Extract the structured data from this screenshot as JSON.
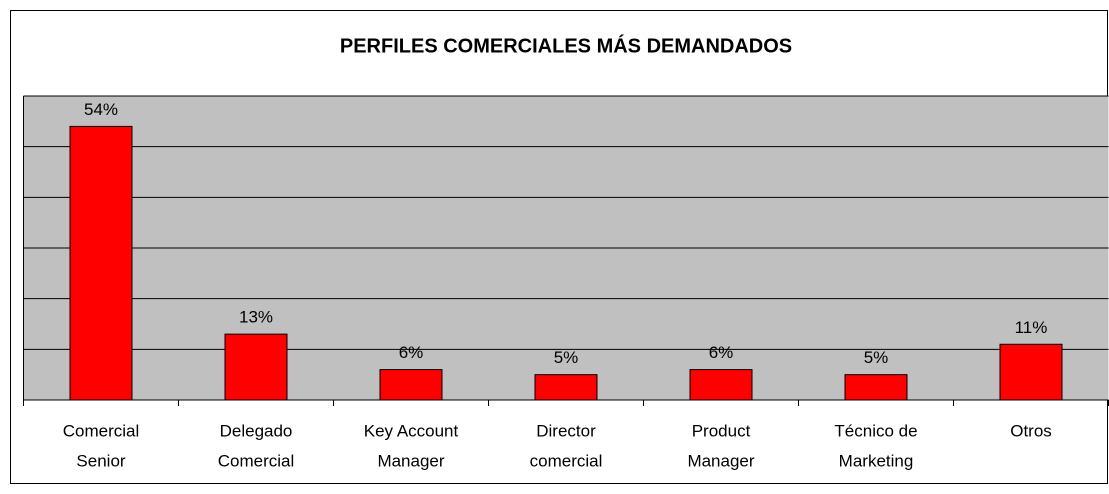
{
  "chart_data": {
    "type": "bar",
    "title": "PERFILES COMERCIALES MÁS DEMANDADOS",
    "categories": [
      [
        "Comercial",
        "Senior"
      ],
      [
        "Delegado",
        "Comercial"
      ],
      [
        "Key Account",
        "Manager"
      ],
      [
        "Director",
        "comercial"
      ],
      [
        "Product",
        "Manager"
      ],
      [
        "Técnico de",
        "Marketing"
      ],
      [
        "Otros"
      ]
    ],
    "values": [
      54,
      13,
      6,
      5,
      6,
      5,
      11
    ],
    "value_labels": [
      "54%",
      "13%",
      "6%",
      "5%",
      "6%",
      "5%",
      "11%"
    ],
    "color": "#ff0000",
    "ylim": [
      0,
      60
    ],
    "yticks": [
      0,
      10,
      20,
      30,
      40,
      50,
      60
    ],
    "grid": true
  }
}
